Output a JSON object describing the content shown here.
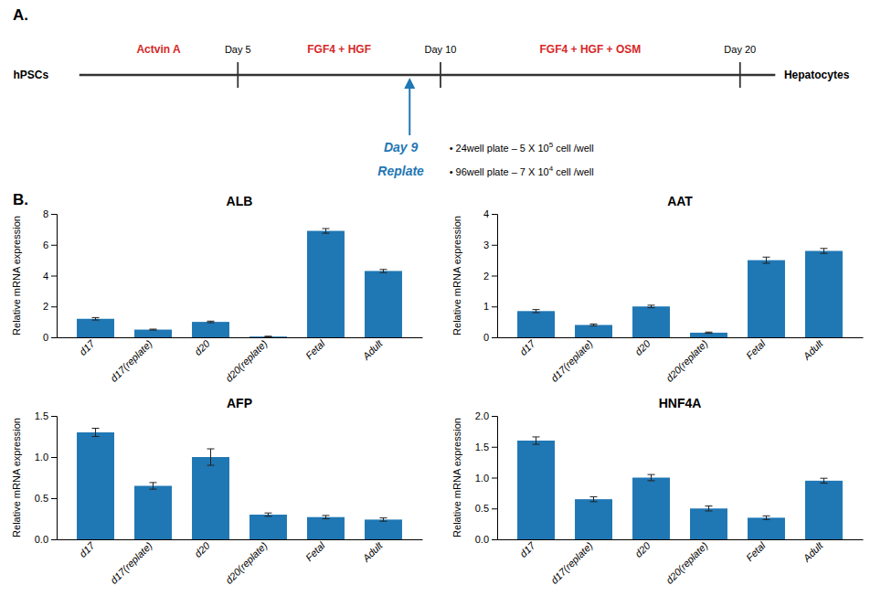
{
  "chart_data": [
    {
      "type": "timeline",
      "title": "A.",
      "annotations": [
        "hPSCs",
        "Hepatocytes",
        "Day 5",
        "Day 10",
        "Day 20",
        "Actvin A",
        "FGF4 + HGF",
        "FGF4 + HGF + OSM",
        "Day 9",
        "Replate",
        "• 24well plate – 5 X 10",
        "5",
        " cell /well",
        "• 96well plate – 7 X 10",
        "4",
        " cell /well"
      ]
    },
    {
      "type": "bar",
      "title": "ALB",
      "annotations": [
        "B."
      ],
      "categories": [
        "d17",
        "d17(replate)",
        "d20",
        "d20(replate)",
        "Fetal",
        "Adult"
      ],
      "values": [
        1.2,
        0.5,
        1.0,
        0.05,
        6.9,
        4.3
      ],
      "errors": [
        0.08,
        0.03,
        0.05,
        0.02,
        0.15,
        0.1
      ],
      "ylim": [
        0,
        8
      ],
      "yticks": [
        0,
        2,
        4,
        6,
        8
      ],
      "ylabel": "Relative mRNA expression"
    },
    {
      "type": "bar",
      "title": "AAT",
      "categories": [
        "d17",
        "d17(replate)",
        "d20",
        "d20(replate)",
        "Fetal",
        "Adult"
      ],
      "values": [
        0.85,
        0.4,
        1.0,
        0.15,
        2.5,
        2.8
      ],
      "errors": [
        0.05,
        0.03,
        0.04,
        0.02,
        0.1,
        0.08
      ],
      "ylim": [
        0,
        4
      ],
      "yticks": [
        0,
        1,
        2,
        3,
        4
      ],
      "ylabel": "Relative mRNA expression"
    },
    {
      "type": "bar",
      "title": "AFP",
      "categories": [
        "d17",
        "d17(replate)",
        "d20",
        "d20(replate)",
        "Fetal",
        "Adult"
      ],
      "values": [
        1.3,
        0.65,
        1.0,
        0.3,
        0.27,
        0.24
      ],
      "errors": [
        0.05,
        0.04,
        0.1,
        0.02,
        0.02,
        0.02
      ],
      "ylim": [
        0,
        1.5
      ],
      "yticks": [
        {
          "value": 0,
          "label": "0.0"
        },
        0.5,
        {
          "value": 1,
          "label": "1.0"
        },
        1.5
      ],
      "ylabel": "Relative mRNA expression"
    },
    {
      "type": "bar",
      "title": "HNF4A",
      "categories": [
        "d17",
        "d17(replate)",
        "d20",
        "d20(replate)",
        "Fetal",
        "Adult"
      ],
      "values": [
        1.6,
        0.65,
        1.0,
        0.5,
        0.35,
        0.95
      ],
      "errors": [
        0.06,
        0.04,
        0.05,
        0.04,
        0.03,
        0.04
      ],
      "ylim": [
        0,
        2.0
      ],
      "yticks": [
        {
          "value": 0,
          "label": "0.0"
        },
        0.5,
        {
          "value": 1,
          "label": "1.0"
        },
        1.5,
        {
          "value": 2,
          "label": "2.0"
        }
      ],
      "ylabel": "Relative mRNA expression"
    }
  ]
}
